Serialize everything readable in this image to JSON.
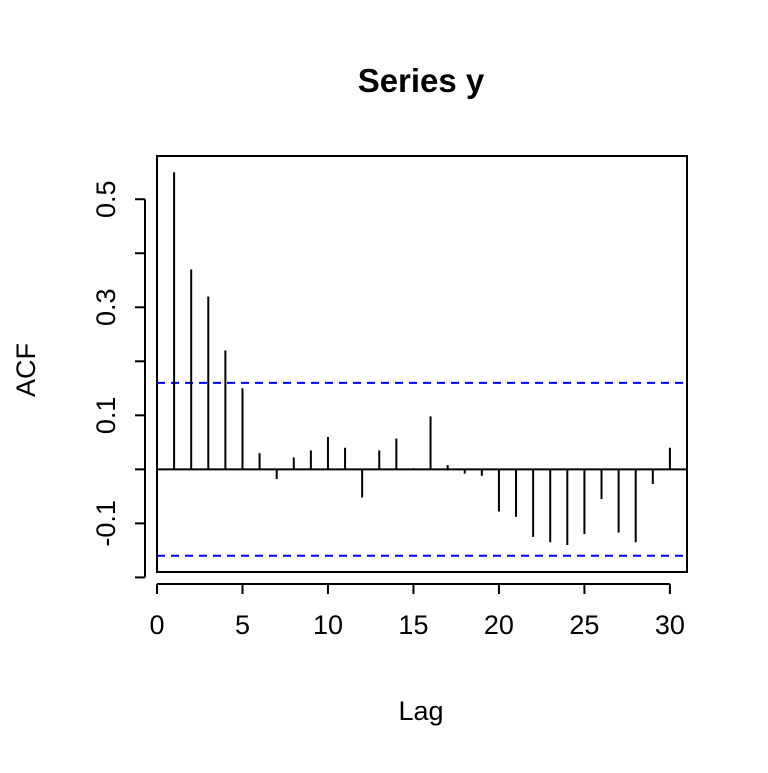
{
  "chart_data": {
    "type": "bar",
    "title": "Series y",
    "xlabel": "Lag",
    "ylabel": "ACF",
    "xlim": [
      0,
      31
    ],
    "ylim": [
      -0.19,
      0.58
    ],
    "x_ticks": [
      0,
      5,
      10,
      15,
      20,
      25,
      30
    ],
    "y_ticks": [
      -0.1,
      0.1,
      0.3,
      0.5
    ],
    "y_minor_ticks": [
      -0.2,
      0,
      0.2,
      0.4
    ],
    "confidence_band": 0.16,
    "band_color": "#0000ff",
    "lag": [
      1,
      2,
      3,
      4,
      5,
      6,
      7,
      8,
      9,
      10,
      11,
      12,
      13,
      14,
      15,
      16,
      17,
      18,
      19,
      20,
      21,
      22,
      23,
      24,
      25,
      26,
      27,
      28,
      29,
      30
    ],
    "acf": [
      0.55,
      0.37,
      0.32,
      0.22,
      0.15,
      0.03,
      -0.018,
      0.022,
      0.035,
      0.06,
      0.04,
      -0.052,
      0.035,
      0.057,
      0.002,
      0.098,
      0.008,
      -0.008,
      -0.012,
      -0.078,
      -0.088,
      -0.125,
      -0.135,
      -0.14,
      -0.12,
      -0.055,
      -0.117,
      -0.135,
      -0.027,
      0.04
    ]
  }
}
